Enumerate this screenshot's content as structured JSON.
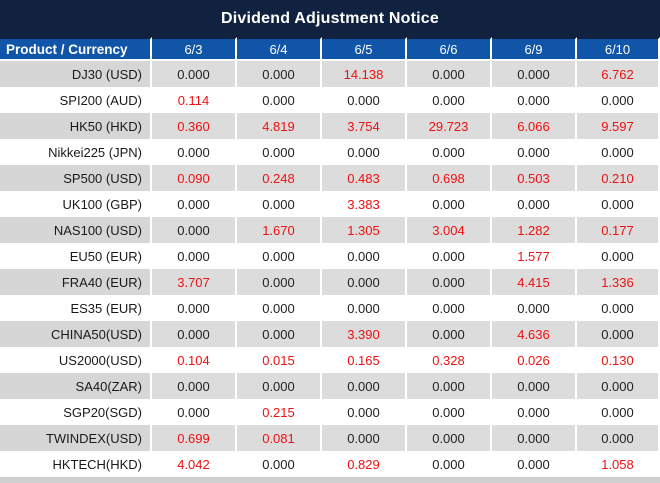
{
  "title": "Dividend Adjustment Notice",
  "table": {
    "product_header": "Product / Currency",
    "date_headers": [
      "6/3",
      "6/4",
      "6/5",
      "6/6",
      "6/9",
      "6/10"
    ],
    "rows": [
      {
        "product": "DJ30 (USD)",
        "values": [
          "0.000",
          "0.000",
          "14.138",
          "0.000",
          "0.000",
          "6.762"
        ]
      },
      {
        "product": "SPI200 (AUD)",
        "values": [
          "0.114",
          "0.000",
          "0.000",
          "0.000",
          "0.000",
          "0.000"
        ]
      },
      {
        "product": "HK50 (HKD)",
        "values": [
          "0.360",
          "4.819",
          "3.754",
          "29.723",
          "6.066",
          "9.597"
        ]
      },
      {
        "product": "Nikkei225 (JPN)",
        "values": [
          "0.000",
          "0.000",
          "0.000",
          "0.000",
          "0.000",
          "0.000"
        ]
      },
      {
        "product": "SP500 (USD)",
        "values": [
          "0.090",
          "0.248",
          "0.483",
          "0.698",
          "0.503",
          "0.210"
        ]
      },
      {
        "product": "UK100 (GBP)",
        "values": [
          "0.000",
          "0.000",
          "3.383",
          "0.000",
          "0.000",
          "0.000"
        ]
      },
      {
        "product": "NAS100 (USD)",
        "values": [
          "0.000",
          "1.670",
          "1.305",
          "3.004",
          "1.282",
          "0.177"
        ]
      },
      {
        "product": "EU50 (EUR)",
        "values": [
          "0.000",
          "0.000",
          "0.000",
          "0.000",
          "1.577",
          "0.000"
        ]
      },
      {
        "product": "FRA40 (EUR)",
        "values": [
          "3.707",
          "0.000",
          "0.000",
          "0.000",
          "4.415",
          "1.336"
        ]
      },
      {
        "product": "ES35 (EUR)",
        "values": [
          "0.000",
          "0.000",
          "0.000",
          "0.000",
          "0.000",
          "0.000"
        ]
      },
      {
        "product": "CHINA50(USD)",
        "values": [
          "0.000",
          "0.000",
          "3.390",
          "0.000",
          "4.636",
          "0.000"
        ]
      },
      {
        "product": "US2000(USD)",
        "values": [
          "0.104",
          "0.015",
          "0.165",
          "0.328",
          "0.026",
          "0.130"
        ]
      },
      {
        "product": "SA40(ZAR)",
        "values": [
          "0.000",
          "0.000",
          "0.000",
          "0.000",
          "0.000",
          "0.000"
        ]
      },
      {
        "product": "SGP20(SGD)",
        "values": [
          "0.000",
          "0.215",
          "0.000",
          "0.000",
          "0.000",
          "0.000"
        ]
      },
      {
        "product": "TWINDEX(USD)",
        "values": [
          "0.699",
          "0.081",
          "0.000",
          "0.000",
          "0.000",
          "0.000"
        ]
      },
      {
        "product": "HKTECH(HKD)",
        "values": [
          "4.042",
          "0.000",
          "0.829",
          "0.000",
          "0.000",
          "1.058"
        ]
      }
    ]
  },
  "colors": {
    "title_bg": "#112240",
    "header_bg": "#1155a8",
    "header_text": "#ffffff",
    "stripe_product_bg": "#d6d6d6",
    "stripe_value_bg": "#dcdcdc",
    "white_row_bg": "#ffffff",
    "zero_value_text": "#222222",
    "nonzero_value_text": "#ee1111",
    "separator": "#ffffff",
    "bottom_bar_bg": "#d0d0d0"
  }
}
